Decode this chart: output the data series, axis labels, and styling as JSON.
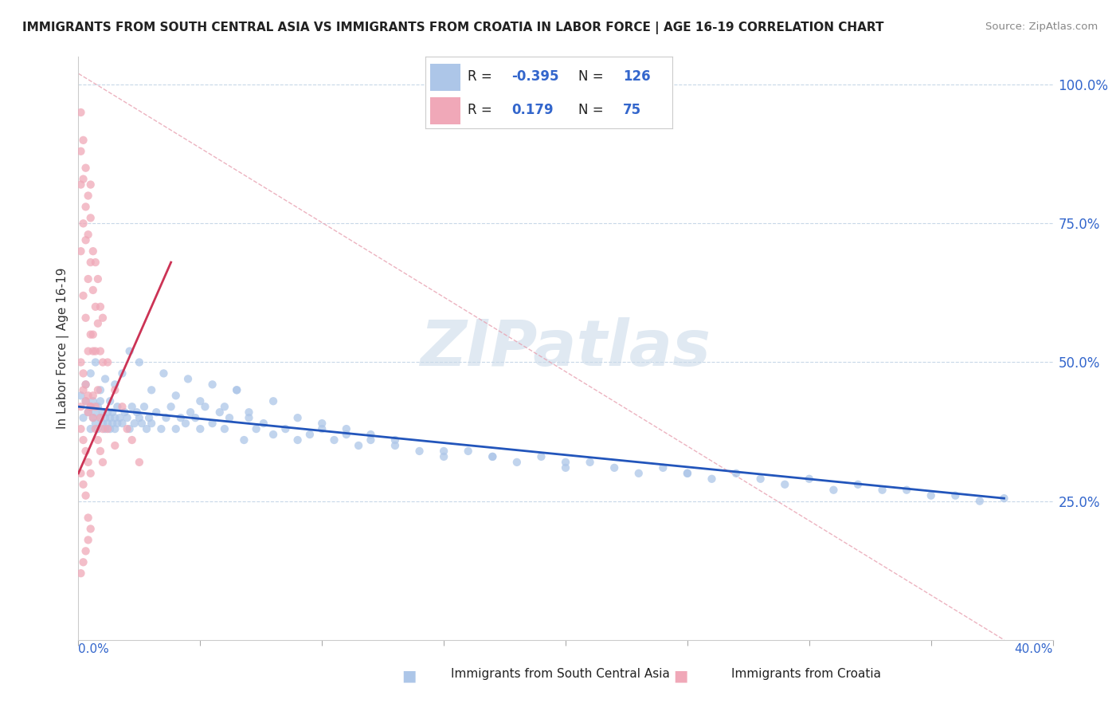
{
  "title": "IMMIGRANTS FROM SOUTH CENTRAL ASIA VS IMMIGRANTS FROM CROATIA IN LABOR FORCE | AGE 16-19 CORRELATION CHART",
  "source": "Source: ZipAtlas.com",
  "ylabel": "In Labor Force | Age 16-19",
  "right_yticks": [
    "100.0%",
    "75.0%",
    "50.0%",
    "25.0%"
  ],
  "right_ytick_vals": [
    1.0,
    0.75,
    0.5,
    0.25
  ],
  "blue_R": -0.395,
  "blue_N": 126,
  "pink_R": 0.179,
  "pink_N": 75,
  "blue_color": "#adc6e8",
  "pink_color": "#f0a8b8",
  "blue_line_color": "#2255bb",
  "pink_line_color": "#cc3355",
  "ref_line_color": "#e8a0b0",
  "watermark": "ZIPatlas",
  "legend_label_blue": "Immigrants from South Central Asia",
  "legend_label_pink": "Immigrants from Croatia",
  "xmin": 0.0,
  "xmax": 0.4,
  "ymin": 0.0,
  "ymax": 1.05,
  "blue_trend_x0": 0.0,
  "blue_trend_y0": 0.42,
  "blue_trend_x1": 0.38,
  "blue_trend_y1": 0.255,
  "pink_trend_x0": 0.0,
  "pink_trend_y0": 0.3,
  "pink_trend_x1": 0.038,
  "pink_trend_y1": 0.68,
  "ref_line_x0": 0.0,
  "ref_line_y0": 1.02,
  "ref_line_x1": 0.38,
  "ref_line_y1": 0.0,
  "blue_scatter_x": [
    0.001,
    0.002,
    0.003,
    0.004,
    0.005,
    0.005,
    0.006,
    0.006,
    0.007,
    0.007,
    0.008,
    0.008,
    0.009,
    0.009,
    0.01,
    0.01,
    0.011,
    0.011,
    0.012,
    0.012,
    0.013,
    0.013,
    0.014,
    0.014,
    0.015,
    0.015,
    0.016,
    0.016,
    0.017,
    0.018,
    0.019,
    0.02,
    0.021,
    0.022,
    0.023,
    0.024,
    0.025,
    0.026,
    0.027,
    0.028,
    0.029,
    0.03,
    0.032,
    0.034,
    0.036,
    0.038,
    0.04,
    0.042,
    0.044,
    0.046,
    0.048,
    0.05,
    0.052,
    0.055,
    0.058,
    0.06,
    0.062,
    0.065,
    0.068,
    0.07,
    0.073,
    0.076,
    0.08,
    0.085,
    0.09,
    0.095,
    0.1,
    0.105,
    0.11,
    0.115,
    0.12,
    0.13,
    0.14,
    0.15,
    0.16,
    0.17,
    0.18,
    0.19,
    0.2,
    0.21,
    0.22,
    0.23,
    0.24,
    0.25,
    0.26,
    0.27,
    0.28,
    0.29,
    0.3,
    0.31,
    0.32,
    0.33,
    0.34,
    0.35,
    0.36,
    0.37,
    0.38,
    0.003,
    0.005,
    0.007,
    0.009,
    0.011,
    0.013,
    0.015,
    0.018,
    0.021,
    0.025,
    0.03,
    0.035,
    0.04,
    0.045,
    0.05,
    0.055,
    0.06,
    0.065,
    0.07,
    0.08,
    0.09,
    0.1,
    0.11,
    0.12,
    0.13,
    0.15,
    0.17,
    0.2,
    0.25
  ],
  "blue_scatter_y": [
    0.44,
    0.4,
    0.43,
    0.41,
    0.38,
    0.42,
    0.4,
    0.43,
    0.39,
    0.41,
    0.38,
    0.42,
    0.4,
    0.43,
    0.39,
    0.41,
    0.38,
    0.4,
    0.39,
    0.41,
    0.38,
    0.4,
    0.39,
    0.41,
    0.38,
    0.4,
    0.39,
    0.42,
    0.4,
    0.39,
    0.41,
    0.4,
    0.38,
    0.42,
    0.39,
    0.41,
    0.4,
    0.39,
    0.42,
    0.38,
    0.4,
    0.39,
    0.41,
    0.38,
    0.4,
    0.42,
    0.38,
    0.4,
    0.39,
    0.41,
    0.4,
    0.38,
    0.42,
    0.39,
    0.41,
    0.38,
    0.4,
    0.45,
    0.36,
    0.4,
    0.38,
    0.39,
    0.37,
    0.38,
    0.36,
    0.37,
    0.38,
    0.36,
    0.37,
    0.35,
    0.36,
    0.35,
    0.34,
    0.33,
    0.34,
    0.33,
    0.32,
    0.33,
    0.31,
    0.32,
    0.31,
    0.3,
    0.31,
    0.3,
    0.29,
    0.3,
    0.29,
    0.28,
    0.29,
    0.27,
    0.28,
    0.27,
    0.27,
    0.26,
    0.26,
    0.25,
    0.255,
    0.46,
    0.48,
    0.5,
    0.45,
    0.47,
    0.43,
    0.46,
    0.48,
    0.52,
    0.5,
    0.45,
    0.48,
    0.44,
    0.47,
    0.43,
    0.46,
    0.42,
    0.45,
    0.41,
    0.43,
    0.4,
    0.39,
    0.38,
    0.37,
    0.36,
    0.34,
    0.33,
    0.32,
    0.3
  ],
  "pink_scatter_x": [
    0.001,
    0.001,
    0.001,
    0.001,
    0.001,
    0.002,
    0.002,
    0.002,
    0.002,
    0.002,
    0.003,
    0.003,
    0.003,
    0.003,
    0.003,
    0.004,
    0.004,
    0.004,
    0.004,
    0.004,
    0.005,
    0.005,
    0.005,
    0.005,
    0.005,
    0.006,
    0.006,
    0.006,
    0.006,
    0.007,
    0.007,
    0.007,
    0.007,
    0.008,
    0.008,
    0.008,
    0.009,
    0.009,
    0.009,
    0.01,
    0.01,
    0.01,
    0.012,
    0.012,
    0.015,
    0.015,
    0.018,
    0.02,
    0.022,
    0.025,
    0.001,
    0.002,
    0.003,
    0.004,
    0.005,
    0.001,
    0.002,
    0.003,
    0.004,
    0.005,
    0.001,
    0.002,
    0.003,
    0.004,
    0.006,
    0.007,
    0.008,
    0.009,
    0.01,
    0.001,
    0.002,
    0.003,
    0.004,
    0.005,
    0.006
  ],
  "pink_scatter_y": [
    0.95,
    0.88,
    0.82,
    0.7,
    0.42,
    0.9,
    0.83,
    0.75,
    0.62,
    0.45,
    0.85,
    0.78,
    0.72,
    0.58,
    0.43,
    0.8,
    0.73,
    0.65,
    0.52,
    0.41,
    0.82,
    0.76,
    0.68,
    0.55,
    0.42,
    0.7,
    0.63,
    0.55,
    0.44,
    0.68,
    0.6,
    0.52,
    0.42,
    0.65,
    0.57,
    0.45,
    0.6,
    0.52,
    0.4,
    0.58,
    0.5,
    0.38,
    0.5,
    0.38,
    0.45,
    0.35,
    0.42,
    0.38,
    0.36,
    0.32,
    0.38,
    0.36,
    0.34,
    0.32,
    0.3,
    0.5,
    0.48,
    0.46,
    0.44,
    0.42,
    0.3,
    0.28,
    0.26,
    0.22,
    0.4,
    0.38,
    0.36,
    0.34,
    0.32,
    0.12,
    0.14,
    0.16,
    0.18,
    0.2,
    0.52
  ]
}
